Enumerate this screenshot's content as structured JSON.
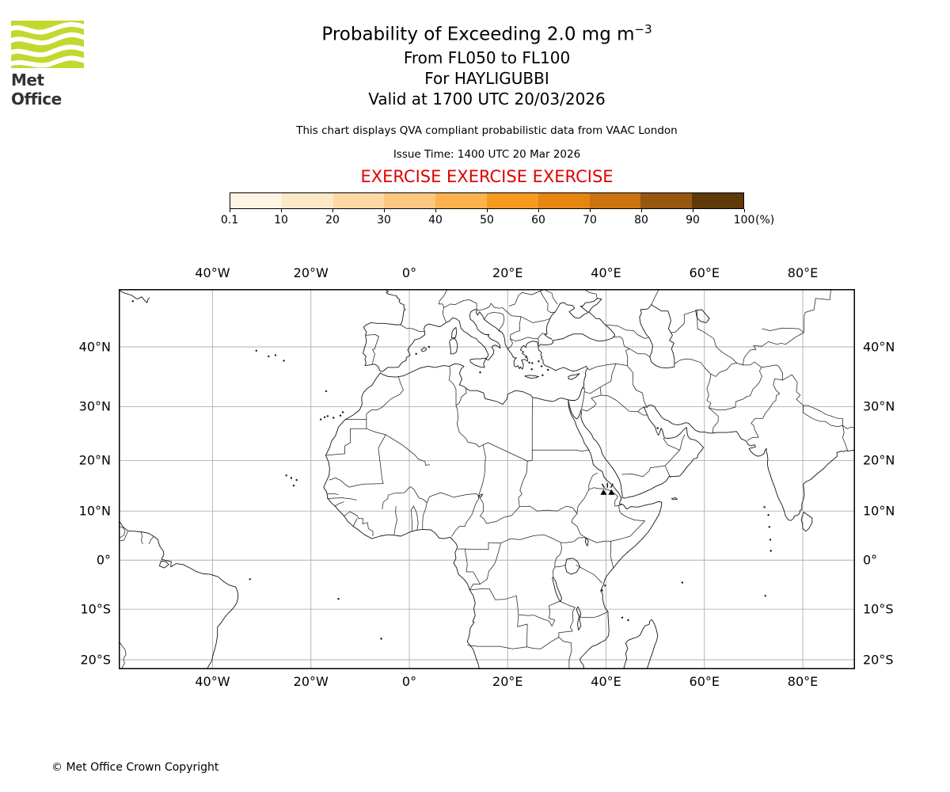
{
  "header": {
    "logo_text": "Met Office",
    "title_main": "Probability of Exceeding 2.0 mg m",
    "title_exponent": "−3",
    "subtitle_levels": "From FL050 to FL100",
    "subtitle_volcano": "For HAYLIGUBBI",
    "subtitle_valid": "Valid at 1700 UTC 20/03/2026",
    "qva_note": "This chart displays QVA compliant probabilistic data from VAAC London",
    "issue_time": "Issue Time: 1400 UTC 20 Mar 2026",
    "exercise_text": "EXERCISE EXERCISE EXERCISE"
  },
  "colorbar": {
    "tick_labels": [
      "0.1",
      "10",
      "20",
      "30",
      "40",
      "50",
      "60",
      "70",
      "80",
      "90",
      "100"
    ],
    "unit_label": "(%)",
    "segment_colors": [
      "#fdf4e2",
      "#fde8c7",
      "#fdd9a5",
      "#fdc780",
      "#fdb24b",
      "#f79b20",
      "#e68512",
      "#cc720e",
      "#99560e",
      "#5f3a08"
    ]
  },
  "map": {
    "lon_tick_labels": [
      "40°W",
      "20°W",
      "0°",
      "20°E",
      "40°E",
      "60°E",
      "80°E"
    ],
    "lat_tick_labels": [
      "40°N",
      "30°N",
      "20°N",
      "10°N",
      "0°",
      "10°S",
      "20°S"
    ],
    "volcano": {
      "name": "HAYLIGUBBI",
      "marker": "volcano-triangle-icon"
    }
  },
  "footer": {
    "copyright": "© Met Office Crown Copyright"
  },
  "colors": {
    "exercise_red": "#e00000",
    "logo_green": "#c3d82e",
    "grid_gray": "#b0b0b0",
    "coast_black": "#151515"
  }
}
